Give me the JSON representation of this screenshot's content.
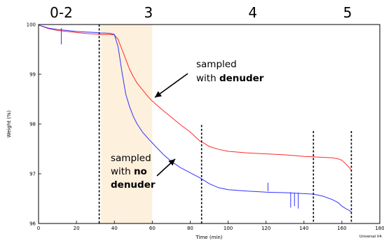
{
  "chart_data": {
    "type": "line",
    "xlabel": "Time (min)",
    "ylabel": "Weight (%)",
    "xlim": [
      0,
      180
    ],
    "ylim": [
      96,
      100
    ],
    "x_ticks": [
      "0",
      "20",
      "40",
      "60",
      "80",
      "100",
      "120",
      "140",
      "160",
      "180"
    ],
    "y_ticks": [
      "96",
      "97",
      "98",
      "99",
      "100"
    ],
    "footer": "Universal V4.",
    "shaded_region": {
      "x": [
        33,
        60
      ],
      "color": "#fdf0dc"
    },
    "stage_boundaries": [
      32,
      86,
      145,
      165
    ],
    "stage_labels": [
      {
        "text": "0-2",
        "x": 12
      },
      {
        "text": "3",
        "x": 58
      },
      {
        "text": "4",
        "x": 113
      },
      {
        "text": "5",
        "x": 163
      }
    ],
    "series": [
      {
        "color": "#ff2a2a",
        "x": [
          0,
          5,
          10,
          15,
          20,
          25,
          30,
          33,
          35,
          38,
          40,
          42,
          44,
          46,
          48,
          50,
          52,
          55,
          58,
          60,
          63,
          66,
          70,
          75,
          80,
          85,
          88,
          90,
          95,
          100,
          110,
          120,
          130,
          140,
          145,
          150,
          155,
          158,
          160,
          162,
          164,
          165
        ],
        "y": [
          99.99,
          99.92,
          99.88,
          99.86,
          99.84,
          99.82,
          99.81,
          99.8,
          99.8,
          99.8,
          99.79,
          99.7,
          99.5,
          99.3,
          99.1,
          98.95,
          98.82,
          98.68,
          98.54,
          98.46,
          98.36,
          98.26,
          98.14,
          97.98,
          97.84,
          97.66,
          97.6,
          97.55,
          97.49,
          97.45,
          97.42,
          97.4,
          97.38,
          97.35,
          97.34,
          97.33,
          97.32,
          97.3,
          97.27,
          97.2,
          97.12,
          97.07
        ]
      },
      {
        "color": "#3333ff",
        "x": [
          0,
          5,
          10,
          15,
          20,
          25,
          30,
          33,
          35,
          38,
          40,
          42,
          44,
          46,
          48,
          50,
          52,
          55,
          58,
          60,
          63,
          66,
          70,
          75,
          80,
          85,
          88,
          90,
          95,
          100,
          110,
          120,
          130,
          140,
          145,
          150,
          155,
          158,
          160,
          162,
          164,
          165
        ],
        "y": [
          99.99,
          99.93,
          99.9,
          99.88,
          99.86,
          99.85,
          99.84,
          99.83,
          99.83,
          99.82,
          99.8,
          99.55,
          99.05,
          98.6,
          98.35,
          98.15,
          98.0,
          97.83,
          97.7,
          97.62,
          97.5,
          97.38,
          97.25,
          97.12,
          97.02,
          96.92,
          96.85,
          96.8,
          96.72,
          96.68,
          96.65,
          96.63,
          96.62,
          96.6,
          96.59,
          96.55,
          96.48,
          96.42,
          96.35,
          96.3,
          96.26,
          96.23
        ]
      }
    ],
    "annotations": [
      {
        "lines": [
          [
            "sampled"
          ],
          [
            "with ",
            "denuder"
          ]
        ],
        "bold": [
          [
            false
          ],
          [
            false,
            true
          ]
        ]
      },
      {
        "lines": [
          [
            "sampled"
          ],
          [
            "with ",
            "no"
          ],
          [
            "denuder"
          ]
        ],
        "bold": [
          [
            false
          ],
          [
            false,
            true
          ],
          [
            true
          ]
        ]
      }
    ]
  }
}
